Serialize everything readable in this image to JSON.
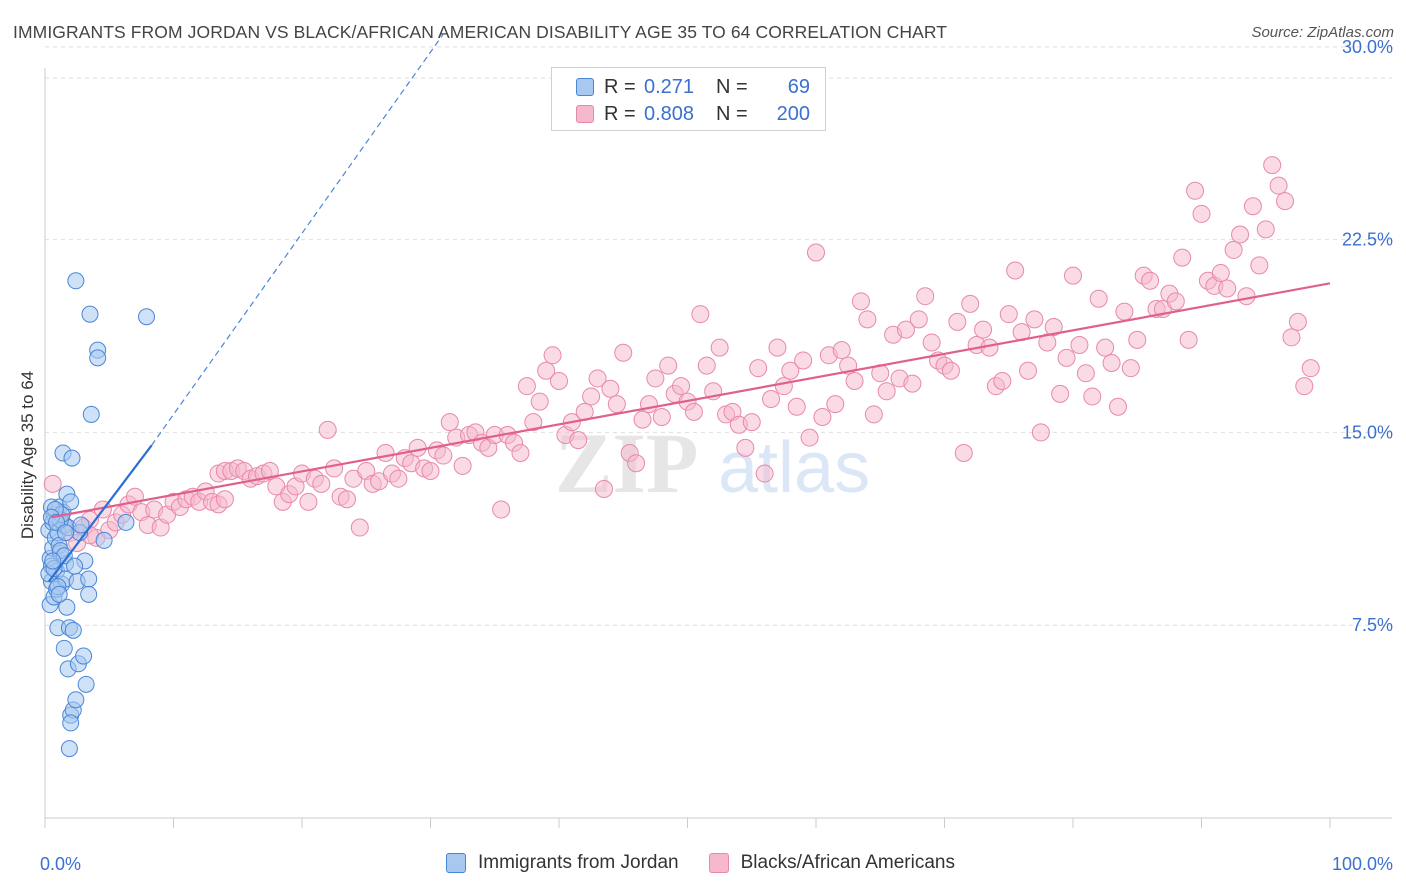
{
  "title": "IMMIGRANTS FROM JORDAN VS BLACK/AFRICAN AMERICAN DISABILITY AGE 35 TO 64 CORRELATION CHART",
  "source": "Source: ZipAtlas.com",
  "watermark": "ZIPatlas",
  "colors": {
    "jordan_fill": "#a8c8f0",
    "jordan_stroke": "#4a86d8",
    "jordan_line": "#2a6fd4",
    "black_fill": "#f5b8cc",
    "black_stroke": "#e889a8",
    "black_line": "#e0608c",
    "tick_label": "#3b6fd0"
  },
  "legend": {
    "rows": [
      {
        "r_label": "R =",
        "r_value": "0.271",
        "n_label": "N =",
        "n_value": "69"
      },
      {
        "r_label": "R =",
        "r_value": "0.808",
        "n_label": "N =",
        "n_value": "200"
      }
    ]
  },
  "bottom_legend": [
    "Immigrants from Jordan",
    "Blacks/African Americans"
  ],
  "chart_data": {
    "type": "scatter",
    "title": "IMMIGRANTS FROM JORDAN VS BLACK/AFRICAN AMERICAN DISABILITY AGE 35 TO 64 CORRELATION CHART",
    "xlabel": "",
    "ylabel": "Disability Age 35 to 64",
    "xlim": [
      0,
      100
    ],
    "ylim": [
      0,
      30.5
    ],
    "x_tick_labels": [
      "0.0%",
      "100.0%"
    ],
    "y_ticks": [
      7.5,
      15.0,
      22.5,
      30.0
    ],
    "y_tick_labels": [
      "7.5%",
      "15.0%",
      "22.5%",
      "30.0%"
    ],
    "grid": true,
    "series": [
      {
        "name": "Immigrants from Jordan",
        "r": 0.271,
        "n": 69,
        "trend": {
          "x": [
            0.3,
            8.3
          ],
          "y": [
            9.2,
            14.5
          ]
        },
        "trend_extended": {
          "x": [
            8.3,
            31.0
          ],
          "y": [
            14.5,
            30.5
          ]
        },
        "points": [
          [
            0.3,
            11.2
          ],
          [
            0.4,
            10.1
          ],
          [
            0.5,
            9.8
          ],
          [
            0.6,
            10.5
          ],
          [
            0.7,
            11.8
          ],
          [
            0.4,
            8.3
          ],
          [
            0.5,
            9.2
          ],
          [
            0.8,
            10.9
          ],
          [
            0.6,
            11.5
          ],
          [
            0.9,
            9.6
          ],
          [
            1.0,
            11.1
          ],
          [
            1.1,
            12.1
          ],
          [
            1.2,
            10.3
          ],
          [
            1.3,
            9.1
          ],
          [
            0.7,
            8.6
          ],
          [
            1.0,
            7.4
          ],
          [
            1.4,
            11.9
          ],
          [
            1.5,
            11.4
          ],
          [
            1.6,
            9.9
          ],
          [
            1.7,
            12.6
          ],
          [
            1.8,
            11.3
          ],
          [
            2.0,
            12.3
          ],
          [
            0.5,
            12.1
          ],
          [
            0.3,
            9.5
          ],
          [
            0.9,
            8.9
          ],
          [
            1.1,
            10.6
          ],
          [
            1.2,
            11.6
          ],
          [
            1.4,
            14.2
          ],
          [
            1.6,
            9.3
          ],
          [
            1.7,
            8.2
          ],
          [
            1.9,
            7.4
          ],
          [
            2.1,
            14.0
          ],
          [
            1.5,
            6.6
          ],
          [
            1.8,
            5.8
          ],
          [
            2.0,
            4.0
          ],
          [
            2.2,
            4.2
          ],
          [
            2.4,
            4.6
          ],
          [
            2.6,
            6.0
          ],
          [
            3.0,
            6.3
          ],
          [
            3.2,
            5.2
          ],
          [
            2.0,
            3.7
          ],
          [
            1.9,
            2.7
          ],
          [
            2.2,
            7.3
          ],
          [
            2.5,
            9.2
          ],
          [
            3.4,
            9.3
          ],
          [
            3.6,
            15.7
          ],
          [
            3.4,
            8.7
          ],
          [
            4.1,
            18.2
          ],
          [
            4.1,
            17.9
          ],
          [
            3.5,
            19.6
          ],
          [
            2.4,
            20.9
          ],
          [
            7.9,
            19.5
          ],
          [
            6.3,
            11.5
          ],
          [
            4.6,
            10.8
          ],
          [
            3.1,
            10.0
          ],
          [
            2.7,
            11.1
          ],
          [
            1.3,
            11.8
          ],
          [
            0.8,
            12.0
          ],
          [
            1.0,
            9.0
          ],
          [
            0.5,
            11.7
          ],
          [
            1.2,
            10.4
          ],
          [
            0.7,
            9.7
          ],
          [
            2.8,
            11.4
          ],
          [
            1.5,
            10.2
          ],
          [
            0.9,
            11.5
          ],
          [
            2.3,
            9.8
          ],
          [
            1.1,
            8.7
          ],
          [
            1.6,
            11.1
          ],
          [
            0.6,
            10.0
          ]
        ]
      },
      {
        "name": "Blacks/African Americans",
        "r": 0.808,
        "n": 200,
        "trend": {
          "x": [
            0.5,
            100.0
          ],
          "y": [
            11.7,
            20.8
          ]
        },
        "points": [
          [
            0.6,
            13.0
          ],
          [
            1.0,
            11.7
          ],
          [
            1.5,
            11.4
          ],
          [
            2.0,
            11.1
          ],
          [
            2.5,
            10.7
          ],
          [
            3.0,
            11.3
          ],
          [
            3.5,
            11.6
          ],
          [
            4.0,
            10.9
          ],
          [
            4.5,
            12.0
          ],
          [
            5.0,
            11.2
          ],
          [
            5.5,
            11.5
          ],
          [
            6.0,
            11.8
          ],
          [
            6.5,
            12.2
          ],
          [
            7.0,
            12.5
          ],
          [
            7.5,
            11.9
          ],
          [
            8.0,
            11.4
          ],
          [
            8.5,
            12.0
          ],
          [
            9.0,
            11.3
          ],
          [
            9.5,
            11.8
          ],
          [
            10.0,
            12.3
          ],
          [
            10.5,
            12.1
          ],
          [
            11.0,
            12.4
          ],
          [
            11.5,
            12.5
          ],
          [
            12.0,
            12.3
          ],
          [
            12.5,
            12.7
          ],
          [
            13.0,
            12.3
          ],
          [
            13.5,
            12.2
          ],
          [
            14.0,
            12.4
          ],
          [
            3.5,
            11.0
          ],
          [
            13.5,
            13.4
          ],
          [
            14.0,
            13.5
          ],
          [
            14.5,
            13.5
          ],
          [
            15.0,
            13.6
          ],
          [
            15.5,
            13.5
          ],
          [
            16.0,
            13.2
          ],
          [
            16.5,
            13.3
          ],
          [
            17.0,
            13.4
          ],
          [
            17.5,
            13.5
          ],
          [
            18.0,
            12.9
          ],
          [
            18.5,
            12.3
          ],
          [
            19.0,
            12.6
          ],
          [
            19.5,
            12.9
          ],
          [
            20.0,
            13.4
          ],
          [
            20.5,
            12.3
          ],
          [
            21.0,
            13.2
          ],
          [
            21.5,
            13.0
          ],
          [
            22.0,
            15.1
          ],
          [
            22.5,
            13.6
          ],
          [
            23.0,
            12.5
          ],
          [
            23.5,
            12.4
          ],
          [
            24.0,
            13.2
          ],
          [
            24.5,
            11.3
          ],
          [
            25.0,
            13.5
          ],
          [
            25.5,
            13.0
          ],
          [
            26.0,
            13.1
          ],
          [
            26.5,
            14.2
          ],
          [
            27.0,
            13.4
          ],
          [
            27.5,
            13.2
          ],
          [
            28.0,
            14.0
          ],
          [
            28.5,
            13.8
          ],
          [
            29.0,
            14.4
          ],
          [
            29.5,
            13.6
          ],
          [
            30.0,
            13.5
          ],
          [
            30.5,
            14.3
          ],
          [
            31.0,
            14.1
          ],
          [
            31.5,
            15.4
          ],
          [
            32.0,
            14.8
          ],
          [
            32.5,
            13.7
          ],
          [
            33.0,
            14.9
          ],
          [
            33.5,
            15.0
          ],
          [
            34.0,
            14.6
          ],
          [
            34.5,
            14.4
          ],
          [
            35.0,
            14.9
          ],
          [
            35.5,
            12.0
          ],
          [
            36.0,
            14.9
          ],
          [
            36.5,
            14.6
          ],
          [
            37.0,
            14.2
          ],
          [
            37.5,
            16.8
          ],
          [
            38.0,
            15.4
          ],
          [
            38.5,
            16.2
          ],
          [
            39.0,
            17.4
          ],
          [
            39.5,
            18.0
          ],
          [
            40.0,
            17.0
          ],
          [
            40.5,
            14.9
          ],
          [
            41.0,
            15.4
          ],
          [
            41.5,
            14.7
          ],
          [
            42.0,
            15.8
          ],
          [
            42.5,
            16.4
          ],
          [
            43.0,
            17.1
          ],
          [
            43.5,
            12.8
          ],
          [
            44.0,
            16.7
          ],
          [
            44.5,
            16.1
          ],
          [
            45.0,
            18.1
          ],
          [
            45.5,
            14.2
          ],
          [
            46.0,
            13.8
          ],
          [
            46.5,
            15.5
          ],
          [
            47.0,
            16.1
          ],
          [
            47.5,
            17.1
          ],
          [
            48.0,
            15.6
          ],
          [
            48.5,
            17.6
          ],
          [
            49.0,
            16.5
          ],
          [
            49.5,
            16.8
          ],
          [
            50.0,
            16.2
          ],
          [
            50.5,
            15.8
          ],
          [
            51.0,
            19.6
          ],
          [
            51.5,
            17.6
          ],
          [
            52.0,
            16.6
          ],
          [
            52.5,
            18.3
          ],
          [
            53.0,
            15.7
          ],
          [
            53.5,
            15.8
          ],
          [
            54.0,
            15.3
          ],
          [
            54.5,
            14.4
          ],
          [
            55.0,
            15.4
          ],
          [
            55.5,
            17.5
          ],
          [
            56.0,
            13.4
          ],
          [
            56.5,
            16.3
          ],
          [
            57.0,
            18.3
          ],
          [
            57.5,
            16.8
          ],
          [
            58.0,
            17.4
          ],
          [
            58.5,
            16.0
          ],
          [
            59.0,
            17.8
          ],
          [
            59.5,
            14.8
          ],
          [
            60.0,
            22.0
          ],
          [
            60.5,
            15.6
          ],
          [
            61.0,
            18.0
          ],
          [
            61.5,
            16.1
          ],
          [
            62.0,
            18.2
          ],
          [
            62.5,
            17.6
          ],
          [
            63.0,
            17.0
          ],
          [
            63.5,
            20.1
          ],
          [
            64.0,
            19.4
          ],
          [
            64.5,
            15.7
          ],
          [
            65.0,
            17.3
          ],
          [
            65.5,
            16.6
          ],
          [
            66.0,
            18.8
          ],
          [
            66.5,
            17.1
          ],
          [
            67.0,
            19.0
          ],
          [
            67.5,
            16.9
          ],
          [
            68.0,
            19.4
          ],
          [
            68.5,
            20.3
          ],
          [
            69.0,
            18.5
          ],
          [
            69.5,
            17.8
          ],
          [
            70.0,
            17.6
          ],
          [
            70.5,
            17.4
          ],
          [
            71.0,
            19.3
          ],
          [
            71.5,
            14.2
          ],
          [
            72.0,
            20.0
          ],
          [
            72.5,
            18.4
          ],
          [
            73.0,
            19.0
          ],
          [
            73.5,
            18.3
          ],
          [
            74.0,
            16.8
          ],
          [
            74.5,
            17.0
          ],
          [
            75.0,
            19.6
          ],
          [
            75.5,
            21.3
          ],
          [
            76.0,
            18.9
          ],
          [
            76.5,
            17.4
          ],
          [
            77.0,
            19.4
          ],
          [
            77.5,
            15.0
          ],
          [
            78.0,
            18.5
          ],
          [
            78.5,
            19.1
          ],
          [
            79.0,
            16.5
          ],
          [
            79.5,
            17.9
          ],
          [
            80.0,
            21.1
          ],
          [
            80.5,
            18.4
          ],
          [
            81.0,
            17.3
          ],
          [
            81.5,
            16.4
          ],
          [
            82.0,
            20.2
          ],
          [
            82.5,
            18.3
          ],
          [
            83.0,
            17.7
          ],
          [
            83.5,
            16.0
          ],
          [
            84.0,
            19.7
          ],
          [
            84.5,
            17.5
          ],
          [
            85.0,
            18.6
          ],
          [
            85.5,
            21.1
          ],
          [
            86.0,
            20.9
          ],
          [
            86.5,
            19.8
          ],
          [
            87.0,
            19.8
          ],
          [
            87.5,
            20.4
          ],
          [
            88.0,
            20.1
          ],
          [
            88.5,
            21.8
          ],
          [
            89.0,
            18.6
          ],
          [
            89.5,
            24.4
          ],
          [
            90.0,
            23.5
          ],
          [
            90.5,
            20.9
          ],
          [
            91.0,
            20.7
          ],
          [
            91.5,
            21.2
          ],
          [
            92.0,
            20.6
          ],
          [
            92.5,
            22.1
          ],
          [
            93.0,
            22.7
          ],
          [
            93.5,
            20.3
          ],
          [
            94.0,
            23.8
          ],
          [
            94.5,
            21.5
          ],
          [
            95.0,
            22.9
          ],
          [
            95.5,
            25.4
          ],
          [
            96.0,
            24.6
          ],
          [
            96.5,
            24.0
          ],
          [
            97.0,
            18.7
          ],
          [
            97.5,
            19.3
          ],
          [
            98.0,
            16.8
          ],
          [
            98.5,
            17.5
          ]
        ]
      }
    ]
  }
}
